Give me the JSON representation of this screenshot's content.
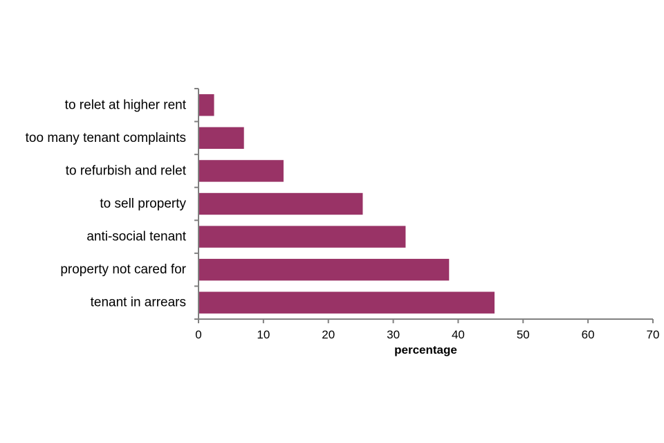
{
  "chart_data": {
    "type": "bar",
    "orientation": "horizontal",
    "categories": [
      "to relet at higher rent",
      "too many tenant complaints",
      "to refurbish and relet",
      "to sell property",
      "anti-social tenant",
      "property not cared for",
      "tenant in arrears"
    ],
    "values": [
      2.4,
      7.0,
      13.1,
      25.3,
      31.9,
      38.6,
      45.6
    ],
    "xlabel": "percentage",
    "ylabel": "",
    "xlim": [
      0,
      70
    ],
    "x_ticks": [
      "0",
      "10",
      "20",
      "30",
      "40",
      "50",
      "60",
      "70"
    ],
    "bar_color": "#993366",
    "axis_color": "#808080",
    "grid": false,
    "legend": "none"
  }
}
